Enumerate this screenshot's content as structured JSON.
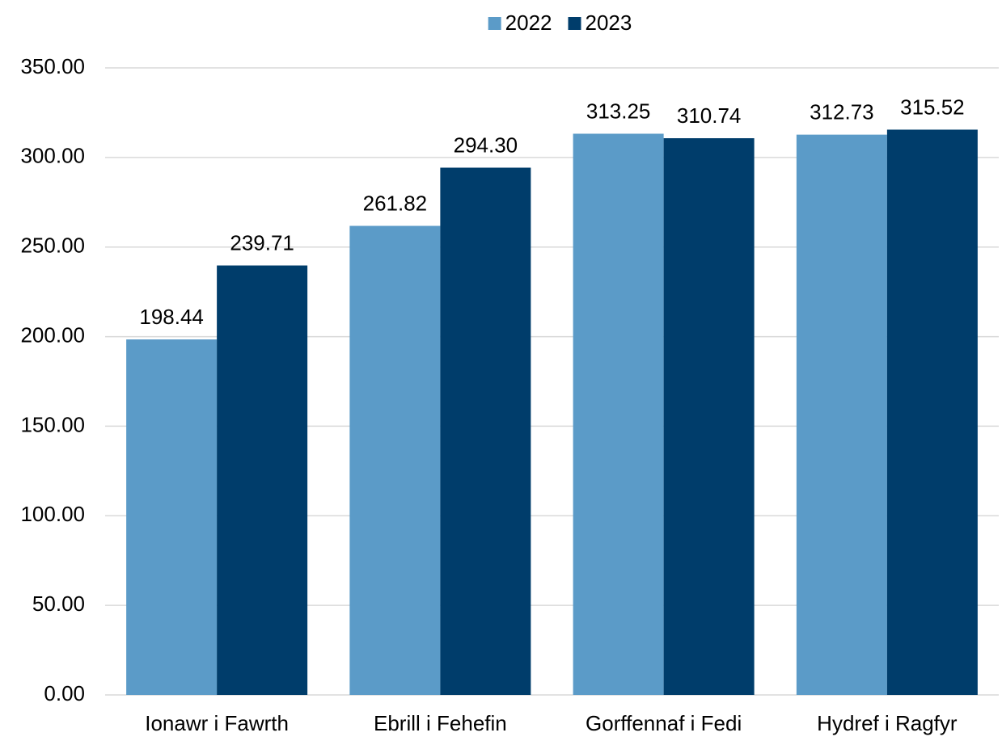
{
  "chart_data": {
    "type": "bar",
    "categories": [
      "Ionawr i Fawrth",
      "Ebrill i Fehefin",
      "Gorffennaf i Fedi",
      "Hydref i Ragfyr"
    ],
    "series": [
      {
        "name": "2022",
        "color": "#5b9bc8",
        "values": [
          198.44,
          261.82,
          313.25,
          312.73
        ],
        "value_labels": [
          "198.44",
          "261.82",
          "313.25",
          "312.73"
        ]
      },
      {
        "name": "2023",
        "color": "#003d6b",
        "values": [
          239.71,
          294.3,
          310.74,
          315.52
        ],
        "value_labels": [
          "239.71",
          "294.30",
          "310.74",
          "315.52"
        ]
      }
    ],
    "ylim": [
      0,
      350
    ],
    "yticks": [
      {
        "value": 0,
        "label": "0.00"
      },
      {
        "value": 50,
        "label": "50.00"
      },
      {
        "value": 100,
        "label": "100.00"
      },
      {
        "value": 150,
        "label": "150.00"
      },
      {
        "value": 200,
        "label": "200.00"
      },
      {
        "value": 250,
        "label": "250.00"
      },
      {
        "value": 300,
        "label": "300.00"
      },
      {
        "value": 350,
        "label": "350.00"
      }
    ],
    "grid": true,
    "legend": "top"
  }
}
